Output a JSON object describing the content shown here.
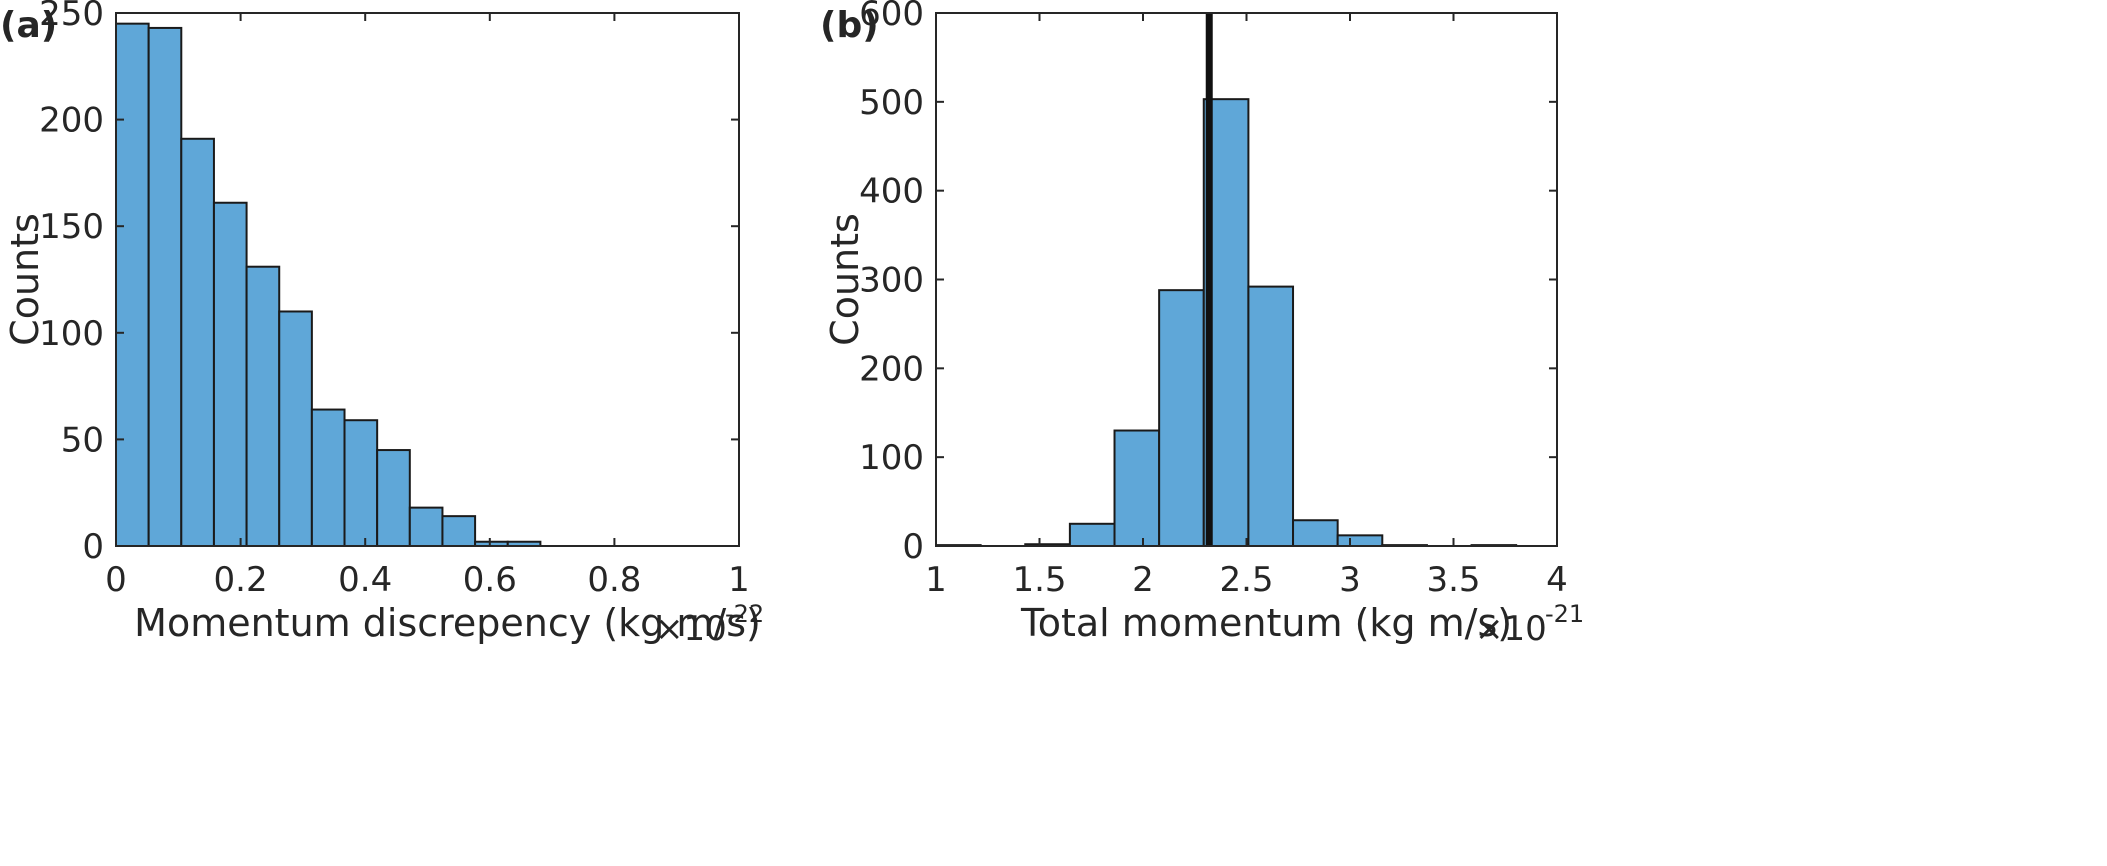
{
  "chart_data": [
    {
      "type": "bar",
      "panel_label": "(a)",
      "title": "",
      "xlabel": "Momentum discrepency (kg m/s)",
      "ylabel": "Counts",
      "x_multiplier": {
        "base": "×10",
        "exponent": "-22"
      },
      "xlim": [
        0,
        1
      ],
      "ylim": [
        0,
        250
      ],
      "xticks": [
        0,
        0.2,
        0.4,
        0.6,
        0.8,
        1
      ],
      "xtick_labels": [
        "0",
        "0.2",
        "0.4",
        "0.6",
        "0.8",
        "1"
      ],
      "yticks": [
        0,
        50,
        100,
        150,
        200,
        250
      ],
      "ytick_labels": [
        "0",
        "50",
        "100",
        "150",
        "200",
        "250"
      ],
      "bin_edges": [
        0,
        0.0524,
        0.1048,
        0.1572,
        0.2096,
        0.262,
        0.3144,
        0.3668,
        0.4192,
        0.4716,
        0.524,
        0.5764,
        0.6288,
        0.6812
      ],
      "values": [
        245,
        243,
        191,
        161,
        131,
        110,
        64,
        59,
        45,
        18,
        14,
        2,
        2
      ],
      "bar_color": "#5fa7d8",
      "grid": false
    },
    {
      "type": "bar",
      "panel_label": "(b)",
      "title": "",
      "xlabel": "Total momentum (kg m/s)",
      "ylabel": "Counts",
      "x_multiplier": {
        "base": "×10",
        "exponent": "-21"
      },
      "xlim": [
        1,
        4
      ],
      "ylim": [
        0,
        600
      ],
      "xticks": [
        1,
        1.5,
        2,
        2.5,
        3,
        3.5,
        4
      ],
      "xtick_labels": [
        "1",
        "1.5",
        "2",
        "2.5",
        "3",
        "3.5",
        "4"
      ],
      "yticks": [
        0,
        100,
        200,
        300,
        400,
        500,
        600
      ],
      "ytick_labels": [
        "0",
        "100",
        "200",
        "300",
        "400",
        "500",
        "600"
      ],
      "bin_edges": [
        1.0,
        1.2156,
        1.4312,
        1.6468,
        1.8624,
        2.078,
        2.2936,
        2.5092,
        2.7248,
        2.9404,
        3.156,
        3.3716,
        3.5872,
        3.8028
      ],
      "values": [
        1,
        0,
        2,
        25,
        130,
        288,
        503,
        292,
        29,
        12,
        1,
        0,
        1
      ],
      "reference_line_x": 2.32,
      "bar_color": "#5fa7d8",
      "grid": false
    }
  ]
}
